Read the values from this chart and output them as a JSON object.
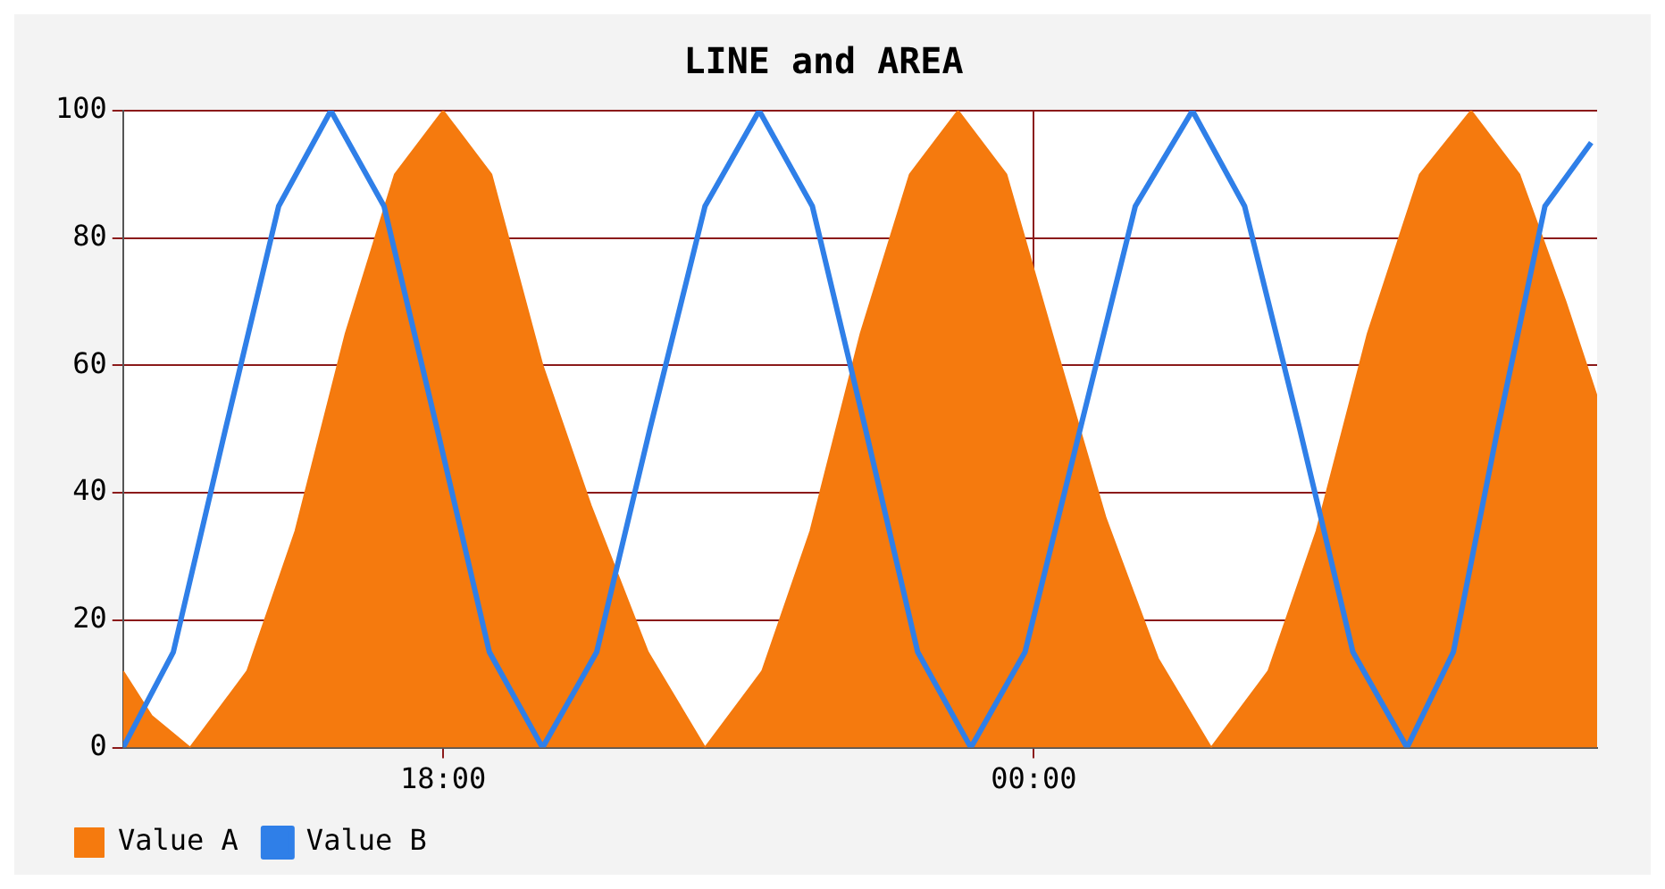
{
  "chart_data": {
    "type": "area",
    "title": "LINE and AREA",
    "xlim": [
      14.75,
      29.72
    ],
    "xticks": [
      {
        "value": 18,
        "label": "18:00"
      },
      {
        "value": 24,
        "label": "00:00"
      }
    ],
    "ylim": [
      0,
      100
    ],
    "yticks": [
      0,
      20,
      40,
      60,
      80,
      100
    ],
    "grid": true,
    "legend": "bottom left",
    "series": [
      {
        "name": "Value A",
        "color": "#f57a0e",
        "x": [
          14.75,
          15.04,
          15.43,
          16.01,
          16.5,
          17.01,
          17.51,
          18,
          18.49,
          19.01,
          19.5,
          20.08,
          20.66,
          21.24,
          21.73,
          22.24,
          22.74,
          23.23,
          23.72,
          24.24,
          24.73,
          25.26,
          25.8,
          26.38,
          26.87,
          27.39,
          27.92,
          28.44,
          28.93,
          29.4,
          29.72
        ],
        "values": [
          12,
          5,
          0,
          12,
          34,
          65,
          90,
          100,
          90,
          60,
          38,
          15,
          0,
          12,
          34,
          65,
          90,
          100,
          90,
          62,
          36,
          14,
          0,
          12,
          34,
          65,
          90,
          100,
          90,
          70,
          55
        ]
      },
      {
        "name": "Value B",
        "type": "line",
        "color": "#2f7fe8",
        "x": [
          14.75,
          15.26,
          15.79,
          16.33,
          16.86,
          17.4,
          17.94,
          18.47,
          19.01,
          19.56,
          20.1,
          20.66,
          21.21,
          21.75,
          22.29,
          22.82,
          23.36,
          23.91,
          24.47,
          25.03,
          25.61,
          26.14,
          26.7,
          27.24,
          27.79,
          28.26,
          28.71,
          29.19,
          29.66
        ],
        "values": [
          0,
          15,
          50,
          85,
          100,
          85,
          50,
          15,
          0,
          15,
          50,
          85,
          100,
          85,
          50,
          15,
          0,
          15,
          50,
          85,
          100,
          85,
          50,
          15,
          0,
          15,
          50,
          85,
          95
        ]
      }
    ]
  }
}
